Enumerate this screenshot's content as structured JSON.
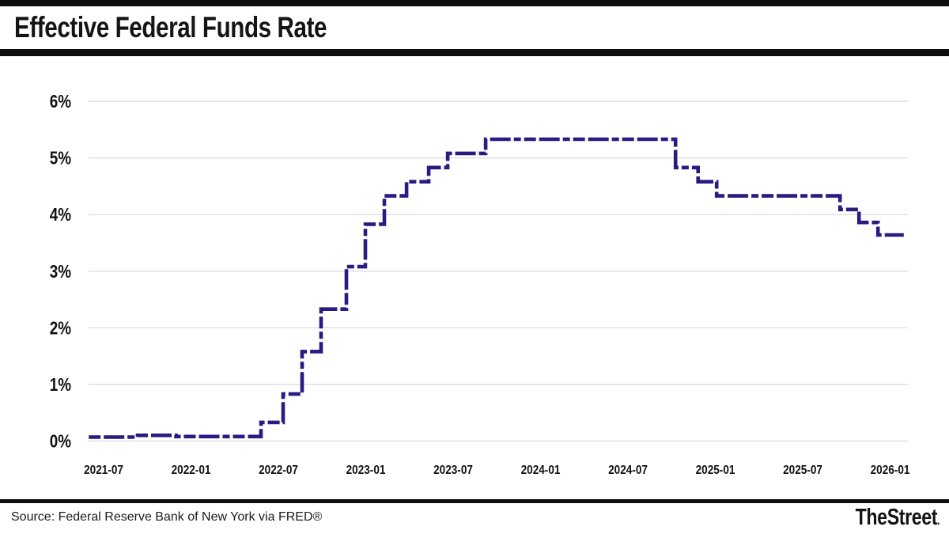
{
  "header": {
    "title": "Effective Federal Funds Rate"
  },
  "footer": {
    "source": "Source: Federal Reserve Bank of New York via FRED®",
    "brand": "TheStreet",
    "brand_suffix": "."
  },
  "chart_data": {
    "type": "line",
    "subtype": "step-after",
    "title": "Effective Federal Funds Rate",
    "xlabel": "",
    "ylabel": "",
    "unit": "percent",
    "ylim": [
      0,
      6.3
    ],
    "x_range": [
      "2021-03-01",
      "2026-02-06"
    ],
    "grid": "horizontal",
    "legend": "none",
    "line_color": "#2a1b82",
    "line_style": "dashed",
    "grid_color": "#dcdcdc",
    "y_ticks": [
      {
        "label": "0%",
        "value": 0
      },
      {
        "label": "1%",
        "value": 1
      },
      {
        "label": "2%",
        "value": 2
      },
      {
        "label": "3%",
        "value": 3
      },
      {
        "label": "4%",
        "value": 4
      },
      {
        "label": "5%",
        "value": 5
      },
      {
        "label": "6%",
        "value": 6
      }
    ],
    "x_ticks": [
      {
        "label": "2021-07",
        "date": "2021-07-01"
      },
      {
        "label": "2022-01",
        "date": "2022-01-01"
      },
      {
        "label": "2022-07",
        "date": "2022-07-01"
      },
      {
        "label": "2023-01",
        "date": "2023-01-01"
      },
      {
        "label": "2023-07",
        "date": "2023-07-01"
      },
      {
        "label": "2024-01",
        "date": "2024-01-01"
      },
      {
        "label": "2024-07",
        "date": "2024-07-01"
      },
      {
        "label": "2025-01",
        "date": "2025-01-01"
      },
      {
        "label": "2025-07",
        "date": "2025-07-01"
      },
      {
        "label": "2026-01",
        "date": "2026-01-01"
      }
    ],
    "series": [
      {
        "name": "Effective Federal Funds Rate",
        "end_date": "2026-02-06",
        "points": [
          {
            "date": "2021-03-01",
            "value": 0.07
          },
          {
            "date": "2021-06-17",
            "value": 0.1
          },
          {
            "date": "2021-09-10",
            "value": 0.08
          },
          {
            "date": "2022-03-17",
            "value": 0.33
          },
          {
            "date": "2022-05-05",
            "value": 0.83
          },
          {
            "date": "2022-06-16",
            "value": 1.58
          },
          {
            "date": "2022-07-28",
            "value": 2.33
          },
          {
            "date": "2022-09-22",
            "value": 3.08
          },
          {
            "date": "2022-11-03",
            "value": 3.83
          },
          {
            "date": "2022-12-15",
            "value": 4.33
          },
          {
            "date": "2023-02-02",
            "value": 4.58
          },
          {
            "date": "2023-03-23",
            "value": 4.83
          },
          {
            "date": "2023-05-04",
            "value": 5.08
          },
          {
            "date": "2023-07-27",
            "value": 5.33
          },
          {
            "date": "2024-09-19",
            "value": 4.83
          },
          {
            "date": "2024-11-08",
            "value": 4.58
          },
          {
            "date": "2024-12-19",
            "value": 4.33
          },
          {
            "date": "2025-09-18",
            "value": 4.09
          },
          {
            "date": "2025-10-30",
            "value": 3.86
          },
          {
            "date": "2025-12-11",
            "value": 3.64
          }
        ]
      }
    ]
  }
}
